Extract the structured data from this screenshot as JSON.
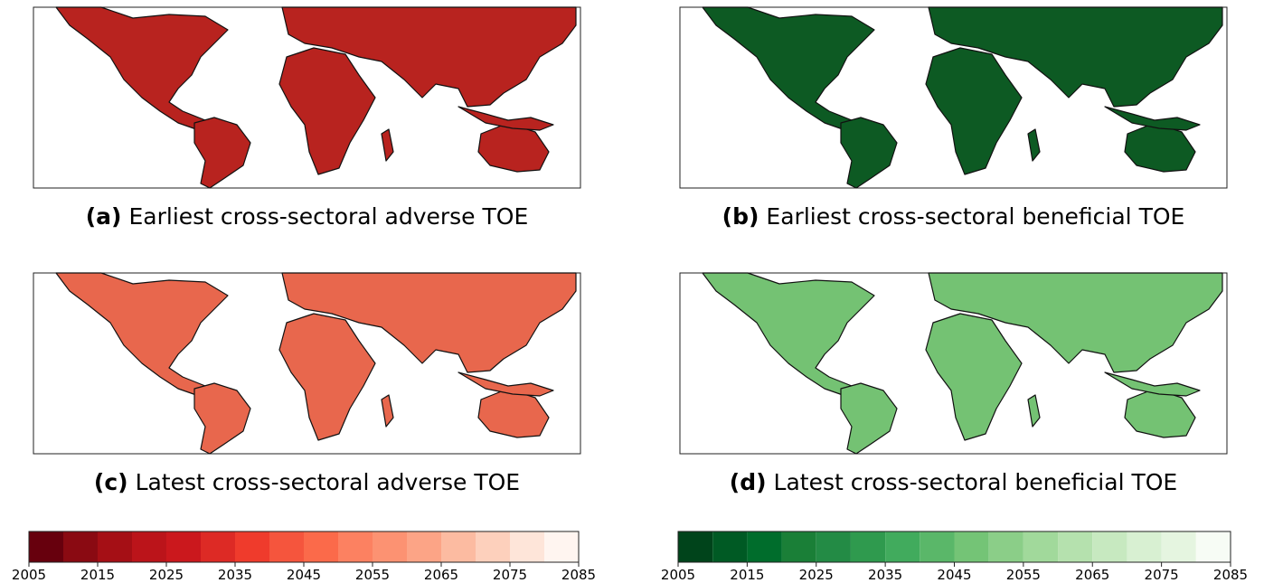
{
  "panels": [
    {
      "label": "(a)",
      "caption": "Earliest cross-sectoral adverse TOE"
    },
    {
      "label": "(b)",
      "caption": "Earliest cross-sectoral beneficial TOE"
    },
    {
      "label": "(c)",
      "caption": "Latest cross-sectoral adverse TOE"
    },
    {
      "label": "(d)",
      "caption": "Latest cross-sectoral beneficial TOE"
    }
  ],
  "colorbars": [
    {
      "bins": [
        2005,
        2010,
        2015,
        2020,
        2025,
        2030,
        2035,
        2040,
        2045,
        2050,
        2055,
        2060,
        2065,
        2070,
        2075,
        2080,
        2085
      ],
      "colors": [
        "#67000d",
        "#8a0a12",
        "#a50f15",
        "#bb141a",
        "#cb181d",
        "#dd2a25",
        "#ef3b2c",
        "#f5553d",
        "#fb6a4a",
        "#fc8161",
        "#fc9272",
        "#fca486",
        "#fcbba1",
        "#fdd0bc",
        "#fee5d9",
        "#fff5f0"
      ],
      "ticks": [
        2005,
        2015,
        2025,
        2035,
        2045,
        2055,
        2065,
        2075,
        2085
      ]
    },
    {
      "bins": [
        2005,
        2010,
        2015,
        2020,
        2025,
        2030,
        2035,
        2040,
        2045,
        2050,
        2055,
        2060,
        2065,
        2070,
        2075,
        2080,
        2085
      ],
      "colors": [
        "#00441b",
        "#005a24",
        "#006d2c",
        "#1a7f37",
        "#238b45",
        "#2f9a4e",
        "#41ab5d",
        "#5ab769",
        "#74c476",
        "#8bce88",
        "#a1d99b",
        "#b5e1ae",
        "#c7e9c0",
        "#d8f0d2",
        "#e5f5e0",
        "#f7fcf5"
      ],
      "ticks": [
        2005,
        2015,
        2025,
        2035,
        2045,
        2055,
        2065,
        2075,
        2085
      ]
    }
  ]
}
